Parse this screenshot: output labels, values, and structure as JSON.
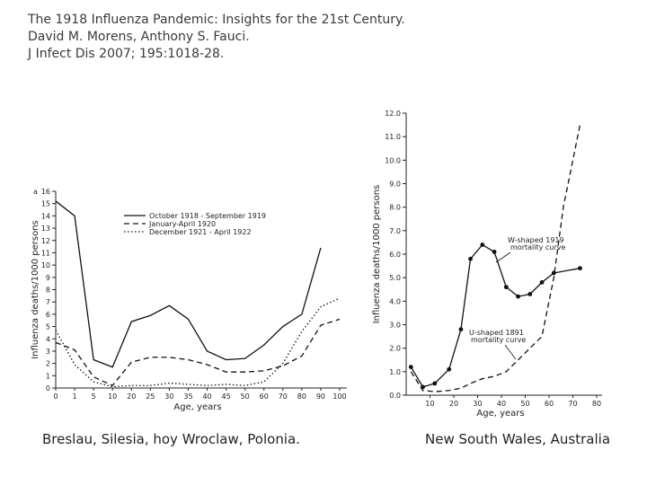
{
  "header": {
    "line1": "The 1918 Influenza Pandemic: Insights for the 21st Century.",
    "line2": "David M. Morens, Anthony S. Fauci.",
    "line3": "J Infect Dis 2007; 195:1018-28."
  },
  "captions": {
    "left": "Breslau, Silesia, hoy Wroclaw, Polonia.",
    "right": "New South Wales, Australia"
  },
  "chart_data": [
    {
      "type": "line",
      "panel": "left",
      "xlabel": "Age, years",
      "ylabel": "Influenza deaths/1000 persons",
      "ylim": [
        0,
        16
      ],
      "y_ticks": [
        0,
        1,
        2,
        3,
        4,
        5,
        6,
        7,
        8,
        9,
        10,
        11,
        12,
        13,
        14,
        15,
        16
      ],
      "top_label": "a",
      "x_categories": [
        "0",
        "1",
        "5",
        "10",
        "20",
        "25",
        "30",
        "35",
        "40",
        "45",
        "50",
        "60",
        "70",
        "80",
        "90",
        "100"
      ],
      "series": [
        {
          "name": "October 1918 - September 1919",
          "style": "solid",
          "values": [
            15.2,
            14.0,
            2.3,
            1.7,
            5.4,
            5.9,
            6.7,
            5.6,
            3.0,
            2.3,
            2.4,
            3.5,
            5.0,
            6.0,
            11.4,
            null
          ]
        },
        {
          "name": "January-April 1920",
          "style": "dashed",
          "values": [
            3.7,
            3.1,
            0.9,
            0.2,
            2.1,
            2.5,
            2.5,
            2.3,
            1.9,
            1.3,
            1.3,
            1.4,
            1.8,
            2.6,
            5.1,
            5.6
          ]
        },
        {
          "name": "December 1921 - April 1922",
          "style": "dotted",
          "values": [
            4.7,
            1.9,
            0.5,
            0.1,
            0.2,
            0.2,
            0.4,
            0.3,
            0.2,
            0.3,
            0.2,
            0.5,
            2.0,
            4.6,
            6.6,
            7.3
          ]
        }
      ]
    },
    {
      "type": "line",
      "panel": "right",
      "xlabel": "Age, years",
      "ylabel": "Influenza deaths/1000 persons",
      "ylim": [
        0,
        12
      ],
      "y_ticks": [
        "0.0",
        "1.0",
        "2.0",
        "3.0",
        "4.0",
        "5.0",
        "6.0",
        "7.0",
        "8.0",
        "9.0",
        "10.0",
        "11.0",
        "12.0"
      ],
      "x_ticks": [
        10,
        20,
        30,
        40,
        50,
        60,
        70,
        80
      ],
      "xlim": [
        0,
        80
      ],
      "series": [
        {
          "name": "W-shaped 1919 mortality curve",
          "style": "solid-markers",
          "x": [
            2,
            7,
            12,
            18,
            23,
            27,
            32,
            37,
            42,
            47,
            52,
            57,
            62,
            73
          ],
          "y": [
            1.2,
            0.35,
            0.5,
            1.1,
            2.8,
            5.8,
            6.4,
            6.1,
            4.6,
            4.2,
            4.3,
            4.8,
            5.2,
            5.4
          ]
        },
        {
          "name": "U-shaped 1891 mortality curve",
          "style": "dashed",
          "x": [
            2,
            7,
            12,
            18,
            23,
            27,
            32,
            37,
            42,
            47,
            52,
            57,
            62,
            66,
            73
          ],
          "y": [
            1.0,
            0.2,
            0.15,
            0.2,
            0.3,
            0.5,
            0.7,
            0.8,
            1.0,
            1.5,
            2.0,
            2.5,
            5.0,
            8.0,
            11.5
          ]
        }
      ],
      "annotations": [
        "W-shaped 1919 mortality curve",
        "U-shaped 1891 mortality curve"
      ]
    }
  ]
}
